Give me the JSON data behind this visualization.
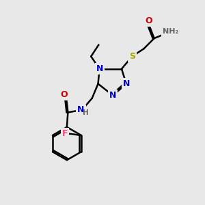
{
  "bg_color": "#e8e8e8",
  "atom_colors": {
    "C": "#000000",
    "N": "#0000cc",
    "O": "#cc0000",
    "S": "#aaaa00",
    "F": "#ff4488",
    "H": "#666666"
  },
  "bond_color": "#000000",
  "bond_width": 1.8,
  "figsize": [
    3.0,
    3.0
  ],
  "dpi": 100
}
